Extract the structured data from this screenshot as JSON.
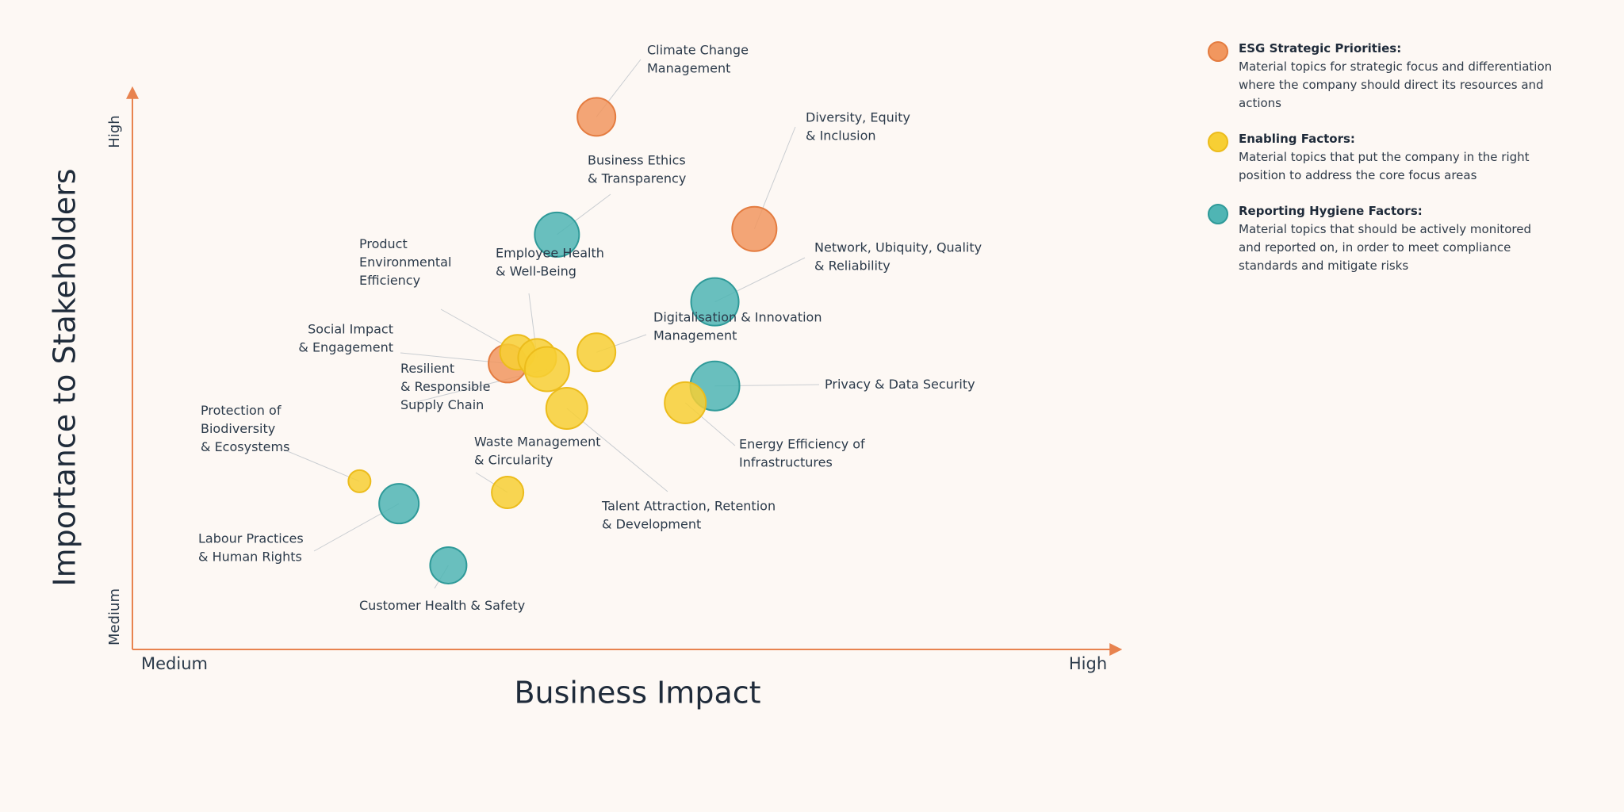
{
  "chart_data": {
    "type": "scatter",
    "xlabel": "Business Impact",
    "ylabel": "Importance to Stakeholders",
    "x_ticks": [
      "Medium",
      "High"
    ],
    "y_ticks": [
      "Medium",
      "High"
    ],
    "xlim": [
      0,
      100
    ],
    "ylim": [
      0,
      100
    ],
    "grid": false,
    "legend_position": "top-right",
    "categories": [
      {
        "key": "esg",
        "title": "ESG Strategic Priorities:",
        "description": "Material topics for strategic focus and differentiation where the company should direct its resources and actions",
        "color": "#f1975f"
      },
      {
        "key": "enabling",
        "title": "Enabling Factors:",
        "description": "Material topics that put the company in the right position to address the core focus areas",
        "color": "#f7cf34"
      },
      {
        "key": "hygiene",
        "title": "Reporting Hygiene Factors:",
        "description": "Material topics that should be actively monitored and reported on, in order to meet compliance standards and mitigate risks",
        "color": "#4fb5b4"
      }
    ],
    "points": [
      {
        "label": [
          "Climate Change",
          "Management"
        ],
        "category": "esg",
        "x": 47,
        "y": 95,
        "size": 24
      },
      {
        "label": [
          "Diversity, Equity",
          "& Inclusion"
        ],
        "category": "esg",
        "x": 63,
        "y": 75,
        "size": 28
      },
      {
        "label": [
          "Business Ethics",
          "& Transparency"
        ],
        "category": "hygiene",
        "x": 43,
        "y": 74,
        "size": 28
      },
      {
        "label": [
          "Network, Ubiquity, Quality",
          "& Reliability"
        ],
        "category": "hygiene",
        "x": 59,
        "y": 62,
        "size": 30
      },
      {
        "label": [
          "Social Impact",
          "& Engagement"
        ],
        "category": "esg",
        "x": 38,
        "y": 51,
        "size": 24
      },
      {
        "label": [
          "Product",
          "Environmental",
          "Efficiency"
        ],
        "category": "enabling",
        "x": 39,
        "y": 53,
        "size": 22
      },
      {
        "label": [
          "Employee Health",
          "& Well-Being"
        ],
        "category": "enabling",
        "x": 41,
        "y": 52,
        "size": 24
      },
      {
        "label": [
          "Resilient",
          "& Responsible",
          "Supply Chain"
        ],
        "category": "enabling",
        "x": 42,
        "y": 50,
        "size": 28
      },
      {
        "label": [
          "Digitalisation & Innovation",
          "Management"
        ],
        "category": "enabling",
        "x": 47,
        "y": 53,
        "size": 24
      },
      {
        "label": [
          "Talent Attraction, Retention",
          "& Development"
        ],
        "category": "enabling",
        "x": 44,
        "y": 43,
        "size": 26
      },
      {
        "label": [
          "Privacy & Data Security"
        ],
        "category": "hygiene",
        "x": 59,
        "y": 47,
        "size": 31
      },
      {
        "label": [
          "Energy Efficiency of",
          "Infrastructures"
        ],
        "category": "enabling",
        "x": 56,
        "y": 44,
        "size": 26
      },
      {
        "label": [
          "Waste Management",
          "& Circularity"
        ],
        "category": "enabling",
        "x": 38,
        "y": 28,
        "size": 20
      },
      {
        "label": [
          "Protection of",
          "Biodiversity",
          "& Ecosystems"
        ],
        "category": "enabling",
        "x": 23,
        "y": 30,
        "size": 14
      },
      {
        "label": [
          "Labour Practices",
          "& Human Rights"
        ],
        "category": "hygiene",
        "x": 27,
        "y": 26,
        "size": 25
      },
      {
        "label": [
          "Customer Health & Safety"
        ],
        "category": "hygiene",
        "x": 32,
        "y": 15,
        "size": 23
      }
    ]
  }
}
